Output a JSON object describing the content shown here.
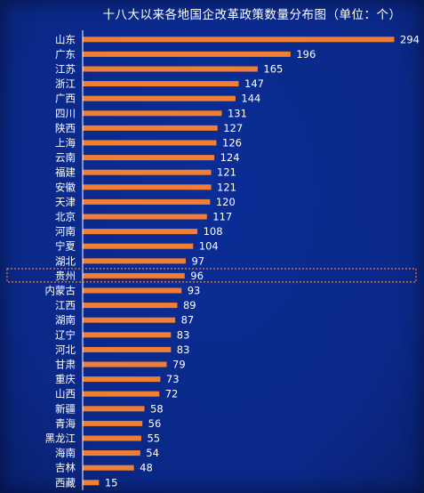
{
  "chart_data": {
    "type": "bar",
    "orientation": "horizontal",
    "title": "十八大以来各地国企改革政策数量分布图（单位：个）",
    "categories": [
      "山东",
      "广东",
      "江苏",
      "浙江",
      "广西",
      "四川",
      "陕西",
      "上海",
      "云南",
      "福建",
      "安徽",
      "天津",
      "北京",
      "河南",
      "宁夏",
      "湖北",
      "贵州",
      "内蒙古",
      "江西",
      "湖南",
      "辽宁",
      "河北",
      "甘肃",
      "重庆",
      "山西",
      "新疆",
      "青海",
      "黑龙江",
      "海南",
      "吉林",
      "西藏"
    ],
    "values": [
      294,
      196,
      165,
      147,
      144,
      131,
      127,
      126,
      124,
      121,
      121,
      120,
      117,
      108,
      104,
      97,
      96,
      93,
      89,
      87,
      83,
      83,
      79,
      73,
      72,
      58,
      56,
      55,
      54,
      48,
      15
    ],
    "highlighted_category": "贵州",
    "bar_color": "#f07f34",
    "xlim": [
      0,
      300
    ]
  }
}
